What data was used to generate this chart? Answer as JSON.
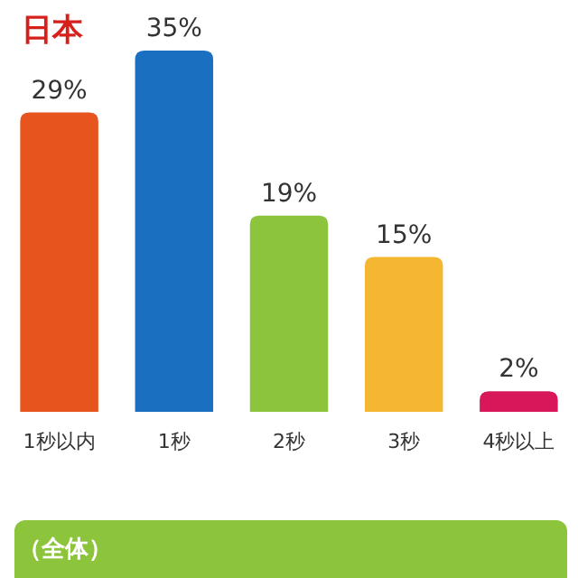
{
  "chart_data": {
    "type": "bar",
    "title": "日本",
    "categories": [
      "1秒以内",
      "1秒",
      "2秒",
      "3秒",
      "4秒以上"
    ],
    "values": [
      29,
      35,
      19,
      15,
      2
    ],
    "colors": [
      "#e8541e",
      "#1a6fc0",
      "#8cc43c",
      "#f5b731",
      "#d8175a"
    ],
    "value_labels": [
      "29%",
      "35%",
      "19%",
      "15%",
      "2%"
    ],
    "annotations": [
      "（全体）"
    ]
  }
}
